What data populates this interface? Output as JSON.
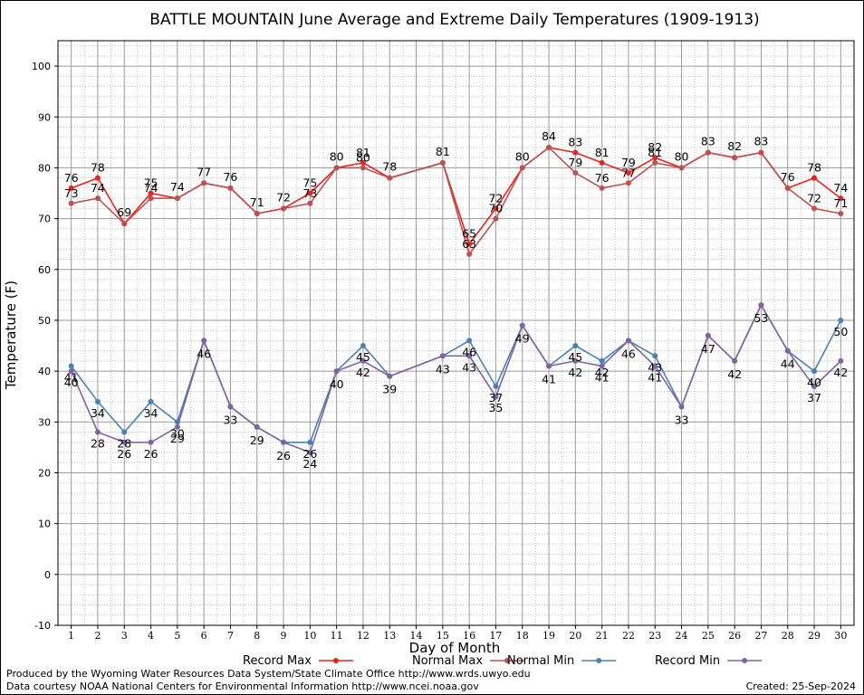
{
  "chart_data": {
    "type": "line",
    "title": "BATTLE MOUNTAIN June Average and Extreme Daily Temperatures (1909-1913)",
    "xlabel": "Day of Month",
    "ylabel": "Temperature (F)",
    "ylim": [
      -10,
      105
    ],
    "xlim": [
      0.5,
      30.5
    ],
    "y_ticks": [
      -10,
      0,
      10,
      20,
      30,
      40,
      50,
      60,
      70,
      80,
      90,
      100
    ],
    "x_ticks": [
      1,
      2,
      3,
      4,
      5,
      6,
      7,
      8,
      9,
      10,
      11,
      12,
      13,
      14,
      15,
      16,
      17,
      18,
      19,
      20,
      21,
      22,
      23,
      24,
      25,
      26,
      27,
      28,
      29,
      30
    ],
    "grid": true,
    "legend_position": "bottom",
    "series": [
      {
        "name": "Record Max",
        "color": "#e8231e",
        "x": [
          1,
          2,
          3,
          4,
          5,
          6,
          7,
          8,
          9,
          10,
          11,
          12,
          13,
          15,
          16,
          17,
          18,
          19,
          20,
          21,
          22,
          23,
          24,
          25,
          26,
          27,
          28,
          29,
          30
        ],
        "values": [
          76,
          78,
          69,
          75,
          74,
          77,
          76,
          71,
          72,
          75,
          80,
          81,
          78,
          81,
          65,
          72,
          80,
          84,
          83,
          81,
          79,
          82,
          80,
          83,
          82,
          83,
          76,
          78,
          74
        ]
      },
      {
        "name": "Normal Max",
        "color": "#c0504d",
        "x": [
          1,
          2,
          3,
          4,
          5,
          6,
          7,
          8,
          9,
          10,
          11,
          12,
          13,
          15,
          16,
          17,
          18,
          19,
          20,
          21,
          22,
          23,
          24,
          25,
          26,
          27,
          28,
          29,
          30
        ],
        "values": [
          73,
          74,
          69,
          74,
          74,
          77,
          76,
          71,
          72,
          73,
          80,
          80,
          78,
          81,
          63,
          70,
          80,
          84,
          79,
          76,
          77,
          81,
          80,
          83,
          82,
          83,
          76,
          72,
          71
        ]
      },
      {
        "name": "Normal Min",
        "color": "#4682b4",
        "x": [
          1,
          2,
          3,
          4,
          5,
          6,
          7,
          8,
          9,
          10,
          11,
          12,
          13,
          15,
          16,
          17,
          18,
          19,
          20,
          21,
          22,
          23,
          24,
          25,
          26,
          27,
          28,
          29,
          30
        ],
        "values": [
          41,
          34,
          28,
          34,
          30,
          46,
          33,
          29,
          26,
          26,
          40,
          45,
          39,
          43,
          46,
          37,
          49,
          41,
          45,
          42,
          46,
          43,
          33,
          47,
          42,
          53,
          44,
          40,
          50
        ]
      },
      {
        "name": "Record Min",
        "color": "#8064a2",
        "x": [
          1,
          2,
          3,
          4,
          5,
          6,
          7,
          8,
          9,
          10,
          11,
          12,
          13,
          15,
          16,
          17,
          18,
          19,
          20,
          21,
          22,
          23,
          24,
          25,
          26,
          27,
          28,
          29,
          30
        ],
        "values": [
          40,
          28,
          26,
          26,
          29,
          46,
          33,
          29,
          26,
          24,
          40,
          42,
          39,
          43,
          43,
          35,
          49,
          41,
          42,
          41,
          46,
          41,
          33,
          47,
          42,
          53,
          44,
          37,
          42
        ]
      }
    ]
  },
  "credits": {
    "produced_by": "Produced by the Wyoming Water Resources Data System/State Climate Office http://www.wrds.uwyo.edu",
    "data_courtesy": "Data courtesy NOAA National Centers for Environmental Information http://www.ncei.noaa.gov",
    "created": "Created:  25-Sep-2024"
  }
}
